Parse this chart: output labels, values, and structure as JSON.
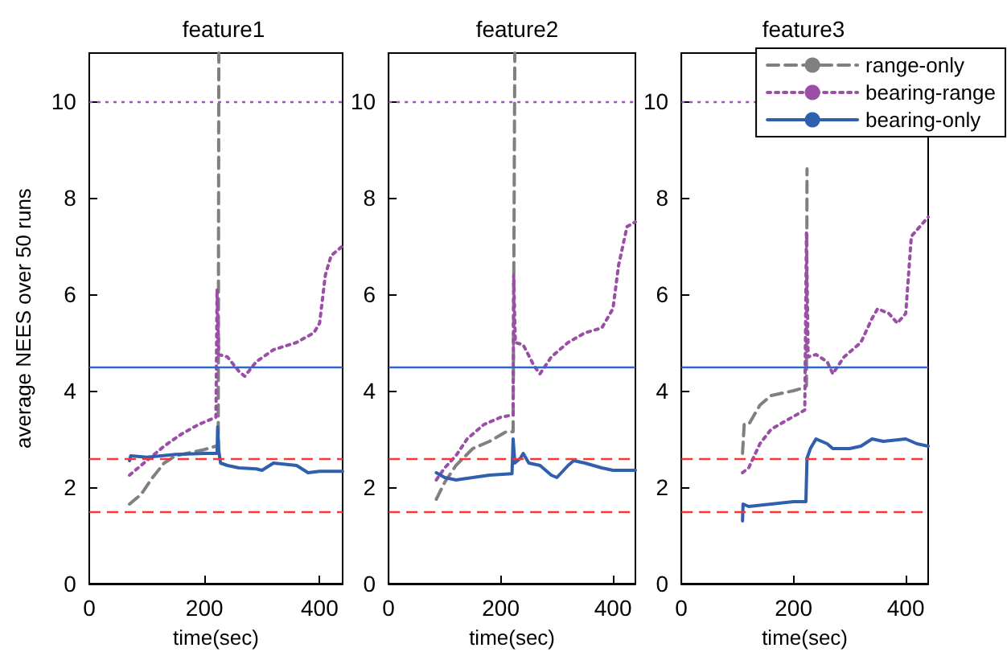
{
  "chart_data": [
    {
      "type": "line",
      "title": "feature1",
      "xlabel": "time(sec)",
      "ylabel": "average NEES over 50 runs",
      "xlim": [
        0,
        440
      ],
      "xticks": [
        0,
        200,
        400
      ],
      "ylim": [
        0,
        11
      ],
      "yticks": [
        0,
        2,
        4,
        6,
        8,
        10
      ],
      "marker": "none",
      "grid": false,
      "legend": false,
      "ref_lines": [
        {
          "axis": "y",
          "value": 10,
          "color": "#a050c0",
          "line_style": "dotted"
        },
        {
          "axis": "y",
          "value": 4.5,
          "color": "#3366cc",
          "line_style": "solid"
        },
        {
          "axis": "y",
          "value": 2.6,
          "color": "#ff3333",
          "line_style": "dashed"
        },
        {
          "axis": "y",
          "value": 1.5,
          "color": "#ff3333",
          "line_style": "dashed"
        }
      ],
      "series": [
        {
          "color": "#808080",
          "line_style": "dashed",
          "x": [
            70,
            90,
            110,
            130,
            150,
            200,
            220,
            224,
            225
          ],
          "values": [
            1.65,
            1.85,
            2.2,
            2.5,
            2.65,
            2.78,
            2.85,
            2.85,
            11
          ]
        },
        {
          "color": "#9b4ea6",
          "line_style": "dotted",
          "x": [
            70,
            100,
            130,
            160,
            190,
            220,
            222,
            225,
            240,
            260,
            270,
            290,
            320,
            360,
            390,
            400,
            410,
            420,
            440
          ],
          "values": [
            2.25,
            2.55,
            2.85,
            3.1,
            3.3,
            3.45,
            6.1,
            4.75,
            4.7,
            4.4,
            4.3,
            4.6,
            4.85,
            5.0,
            5.2,
            5.4,
            6.4,
            6.8,
            7.0
          ]
        },
        {
          "color": "#2f5fad",
          "line_style": "solid",
          "x": [
            70,
            72,
            100,
            150,
            200,
            222,
            223,
            225,
            228,
            240,
            260,
            290,
            300,
            320,
            360,
            380,
            400,
            440
          ],
          "values": [
            2.55,
            2.65,
            2.62,
            2.68,
            2.7,
            2.7,
            3.25,
            2.75,
            2.5,
            2.45,
            2.4,
            2.38,
            2.35,
            2.5,
            2.45,
            2.3,
            2.33,
            2.33
          ]
        }
      ]
    },
    {
      "type": "line",
      "title": "feature2",
      "xlabel": "time(sec)",
      "xlim": [
        0,
        440
      ],
      "xticks": [
        0,
        200,
        400
      ],
      "ylim": [
        0,
        11
      ],
      "yticks": [
        0,
        2,
        4,
        6,
        8,
        10
      ],
      "marker": "none",
      "grid": false,
      "legend": false,
      "ref_lines": [
        {
          "axis": "y",
          "value": 10,
          "color": "#a050c0",
          "line_style": "dotted"
        },
        {
          "axis": "y",
          "value": 4.5,
          "color": "#3366cc",
          "line_style": "solid"
        },
        {
          "axis": "y",
          "value": 2.6,
          "color": "#ff3333",
          "line_style": "dashed"
        },
        {
          "axis": "y",
          "value": 1.5,
          "color": "#ff3333",
          "line_style": "dashed"
        }
      ],
      "series": [
        {
          "color": "#808080",
          "line_style": "dashed",
          "x": [
            85,
            100,
            120,
            150,
            180,
            210,
            222,
            225
          ],
          "values": [
            1.75,
            2.1,
            2.45,
            2.8,
            2.95,
            3.15,
            3.15,
            11
          ]
        },
        {
          "color": "#9b4ea6",
          "line_style": "dotted",
          "x": [
            85,
            100,
            120,
            140,
            170,
            200,
            222,
            223,
            226,
            240,
            260,
            270,
            290,
            320,
            350,
            380,
            400,
            410,
            425,
            440
          ],
          "values": [
            2.15,
            2.4,
            2.65,
            3.0,
            3.3,
            3.45,
            3.5,
            6.4,
            5.0,
            4.95,
            4.5,
            4.35,
            4.7,
            5.0,
            5.2,
            5.3,
            5.7,
            6.6,
            7.4,
            7.5
          ]
        },
        {
          "color": "#2f5fad",
          "line_style": "solid",
          "x": [
            85,
            100,
            120,
            150,
            180,
            220,
            222,
            225,
            235,
            240,
            250,
            270,
            290,
            300,
            320,
            330,
            350,
            380,
            400,
            440
          ],
          "values": [
            2.3,
            2.2,
            2.15,
            2.2,
            2.25,
            2.28,
            3.0,
            2.5,
            2.6,
            2.7,
            2.5,
            2.45,
            2.25,
            2.2,
            2.45,
            2.55,
            2.5,
            2.4,
            2.35,
            2.35
          ]
        }
      ]
    },
    {
      "type": "line",
      "title": "feature3",
      "xlabel": "time(sec)",
      "xlim": [
        0,
        440
      ],
      "xticks": [
        0,
        200,
        400
      ],
      "ylim": [
        0,
        11
      ],
      "yticks": [
        0,
        2,
        4,
        6,
        8,
        10
      ],
      "marker": "none",
      "grid": false,
      "legend": "top right",
      "ref_lines": [
        {
          "axis": "y",
          "value": 10,
          "color": "#a050c0",
          "line_style": "dotted"
        },
        {
          "axis": "y",
          "value": 4.5,
          "color": "#3366cc",
          "line_style": "solid"
        },
        {
          "axis": "y",
          "value": 2.6,
          "color": "#ff3333",
          "line_style": "dashed"
        },
        {
          "axis": "y",
          "value": 1.5,
          "color": "#ff3333",
          "line_style": "dashed"
        }
      ],
      "series": [
        {
          "name": "range-only",
          "color": "#808080",
          "line_style": "dashed",
          "x": [
            109,
            112,
            120,
            140,
            160,
            200,
            215,
            223,
            224
          ],
          "values": [
            2.7,
            3.3,
            3.3,
            3.7,
            3.9,
            4.0,
            4.05,
            4.1,
            8.6
          ]
        },
        {
          "name": "bearing-range",
          "color": "#9b4ea6",
          "line_style": "dotted",
          "x": [
            109,
            120,
            140,
            160,
            190,
            220,
            223,
            226,
            240,
            260,
            270,
            290,
            320,
            340,
            350,
            370,
            385,
            400,
            410,
            425,
            440
          ],
          "values": [
            2.3,
            2.4,
            2.9,
            3.2,
            3.4,
            3.6,
            7.3,
            4.7,
            4.75,
            4.6,
            4.35,
            4.7,
            5.0,
            5.5,
            5.7,
            5.6,
            5.4,
            5.6,
            7.2,
            7.4,
            7.6
          ]
        },
        {
          "name": "bearing-only",
          "color": "#2f5fad",
          "line_style": "solid",
          "x": [
            109,
            110,
            120,
            160,
            200,
            222,
            224,
            230,
            240,
            260,
            270,
            300,
            320,
            340,
            360,
            400,
            420,
            440
          ],
          "values": [
            1.3,
            1.65,
            1.6,
            1.65,
            1.7,
            1.7,
            2.6,
            2.8,
            3.0,
            2.9,
            2.8,
            2.8,
            2.85,
            3.0,
            2.95,
            3.0,
            2.9,
            2.85
          ]
        }
      ]
    }
  ]
}
